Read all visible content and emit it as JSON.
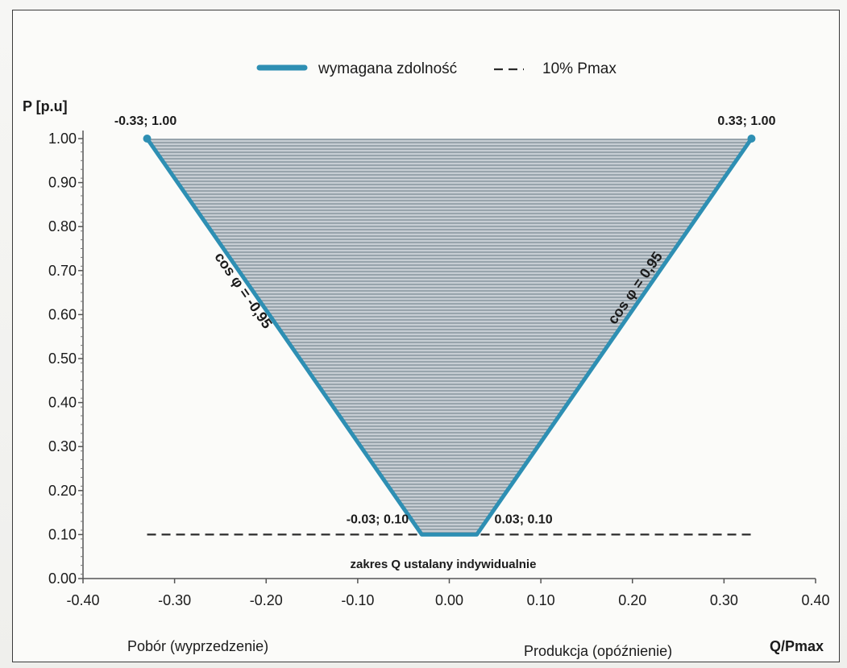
{
  "chart_data": {
    "type": "area",
    "xlim": [
      -0.4,
      0.4
    ],
    "ylim": [
      0.0,
      1.0
    ],
    "x_ticks": [
      "-0.40",
      "-0.30",
      "-0.20",
      "-0.10",
      "0.00",
      "0.10",
      "0.20",
      "0.30",
      "0.40"
    ],
    "y_ticks": [
      "0.00",
      "0.10",
      "0.20",
      "0.30",
      "0.40",
      "0.50",
      "0.60",
      "0.70",
      "0.80",
      "0.90",
      "1.00"
    ],
    "ylabel": "P [p.u]",
    "xlabel": "Q/Pmax",
    "x_left_label": "Pobór (wyprzedzenie)",
    "x_right_label": "Produkcja (opóźnienie)",
    "legend_position": "top-center",
    "grid": false,
    "series": [
      {
        "name": "wymagana zdolność",
        "style": "solid",
        "color": "#2e8fb3",
        "fill": "hatched",
        "points": [
          {
            "x": -0.33,
            "y": 1.0
          },
          {
            "x": -0.03,
            "y": 0.1
          },
          {
            "x": 0.03,
            "y": 0.1
          },
          {
            "x": 0.33,
            "y": 1.0
          }
        ]
      },
      {
        "name": "10% Pmax",
        "style": "dashed",
        "color": "#2a2a2a",
        "points": [
          {
            "x": -0.33,
            "y": 0.1
          },
          {
            "x": 0.33,
            "y": 0.1
          }
        ]
      }
    ],
    "point_labels": [
      "-0.33; 1.00",
      "0.33; 1.00",
      "-0.03; 0.10",
      "0.03; 0.10"
    ],
    "slope_labels": {
      "left": "cos φ = -0,95",
      "right": "cos φ = 0,95"
    },
    "note": "zakres Q ustalany indywidualnie"
  }
}
